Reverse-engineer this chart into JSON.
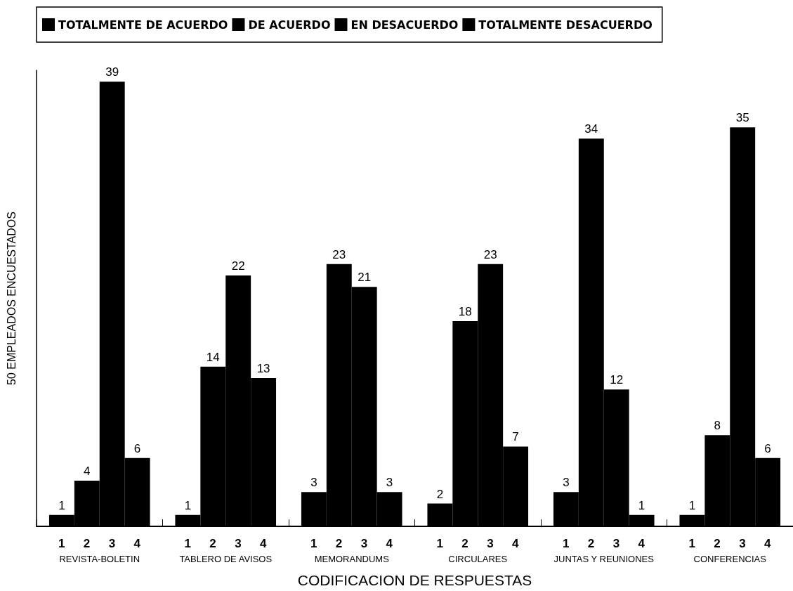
{
  "chart_data": {
    "type": "bar",
    "categories": [
      "REVISTA-BOLETIN",
      "TABLERO DE AVISOS",
      "MEMORANDUMS",
      "CIRCULARES",
      "JUNTAS Y REUNIONES",
      "CONFERENCIAS"
    ],
    "series": [
      {
        "name": "TOTALMENTE DE ACUERDO",
        "color": "#000000",
        "values": [
          1,
          1,
          3,
          2,
          3,
          1
        ]
      },
      {
        "name": "DE ACUERDO",
        "color": "#000000",
        "values": [
          4,
          14,
          23,
          18,
          34,
          8
        ]
      },
      {
        "name": "EN DESACUERDO",
        "color": "#000000",
        "values": [
          39,
          22,
          21,
          23,
          12,
          35
        ]
      },
      {
        "name": "TOTALMENTE DESACUERDO",
        "color": "#000000",
        "values": [
          6,
          13,
          3,
          7,
          1,
          6
        ]
      }
    ],
    "xlabel": "CODIFICACION DE RESPUESTAS",
    "ylabel": "50 EMPLEADOS ENCUESTADOS",
    "annotations": [
      "1",
      "2",
      "3",
      "4"
    ],
    "data_labels": true,
    "grid": false,
    "legend": "top",
    "marker": "square"
  }
}
